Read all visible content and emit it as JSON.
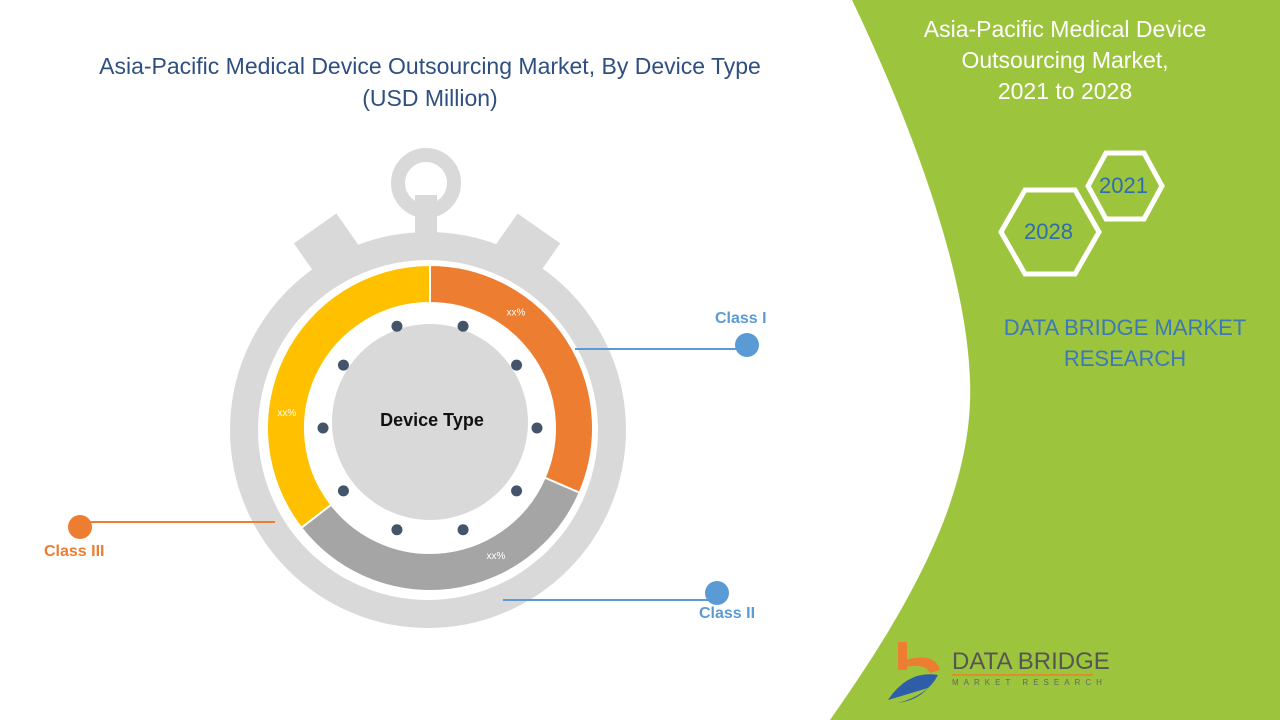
{
  "header": {
    "title": "Asia-Pacific Medical Device Outsourcing Market, By Device Type",
    "subtitle": "(USD Million)"
  },
  "side_panel": {
    "title_lines": [
      "Asia-Pacific Medical Device",
      "Outsourcing Market,",
      "2021 to 2028"
    ],
    "year_start": "2021",
    "year_end": "2028",
    "brand_lines": [
      "DATA BRIDGE MARKET",
      "RESEARCH"
    ]
  },
  "logo": {
    "name": "DATA BRIDGE",
    "tagline": "MARKET RESEARCH"
  },
  "colors": {
    "green_panel": "#9dc43d",
    "class1": "#ed7d31",
    "class2": "#a5a5a5",
    "class3": "#ffc000",
    "ring": "#d9d9d9",
    "leader": "#5b9bd5",
    "dots": "#44546a"
  },
  "chart_data": {
    "type": "pie",
    "donut": true,
    "center_label": "Device Type",
    "categories": [
      "Class I",
      "Class II",
      "Class III"
    ],
    "shares_percent_estimated": [
      31.5,
      33,
      35.5
    ],
    "data_labels": [
      "xx%",
      "xx%",
      "xx%"
    ],
    "series_colors": [
      "#ed7d31",
      "#a5a5a5",
      "#ffc000"
    ],
    "legend_colors": [
      "#5b9bd5",
      "#5b9bd5",
      "#ed7d31"
    ]
  }
}
